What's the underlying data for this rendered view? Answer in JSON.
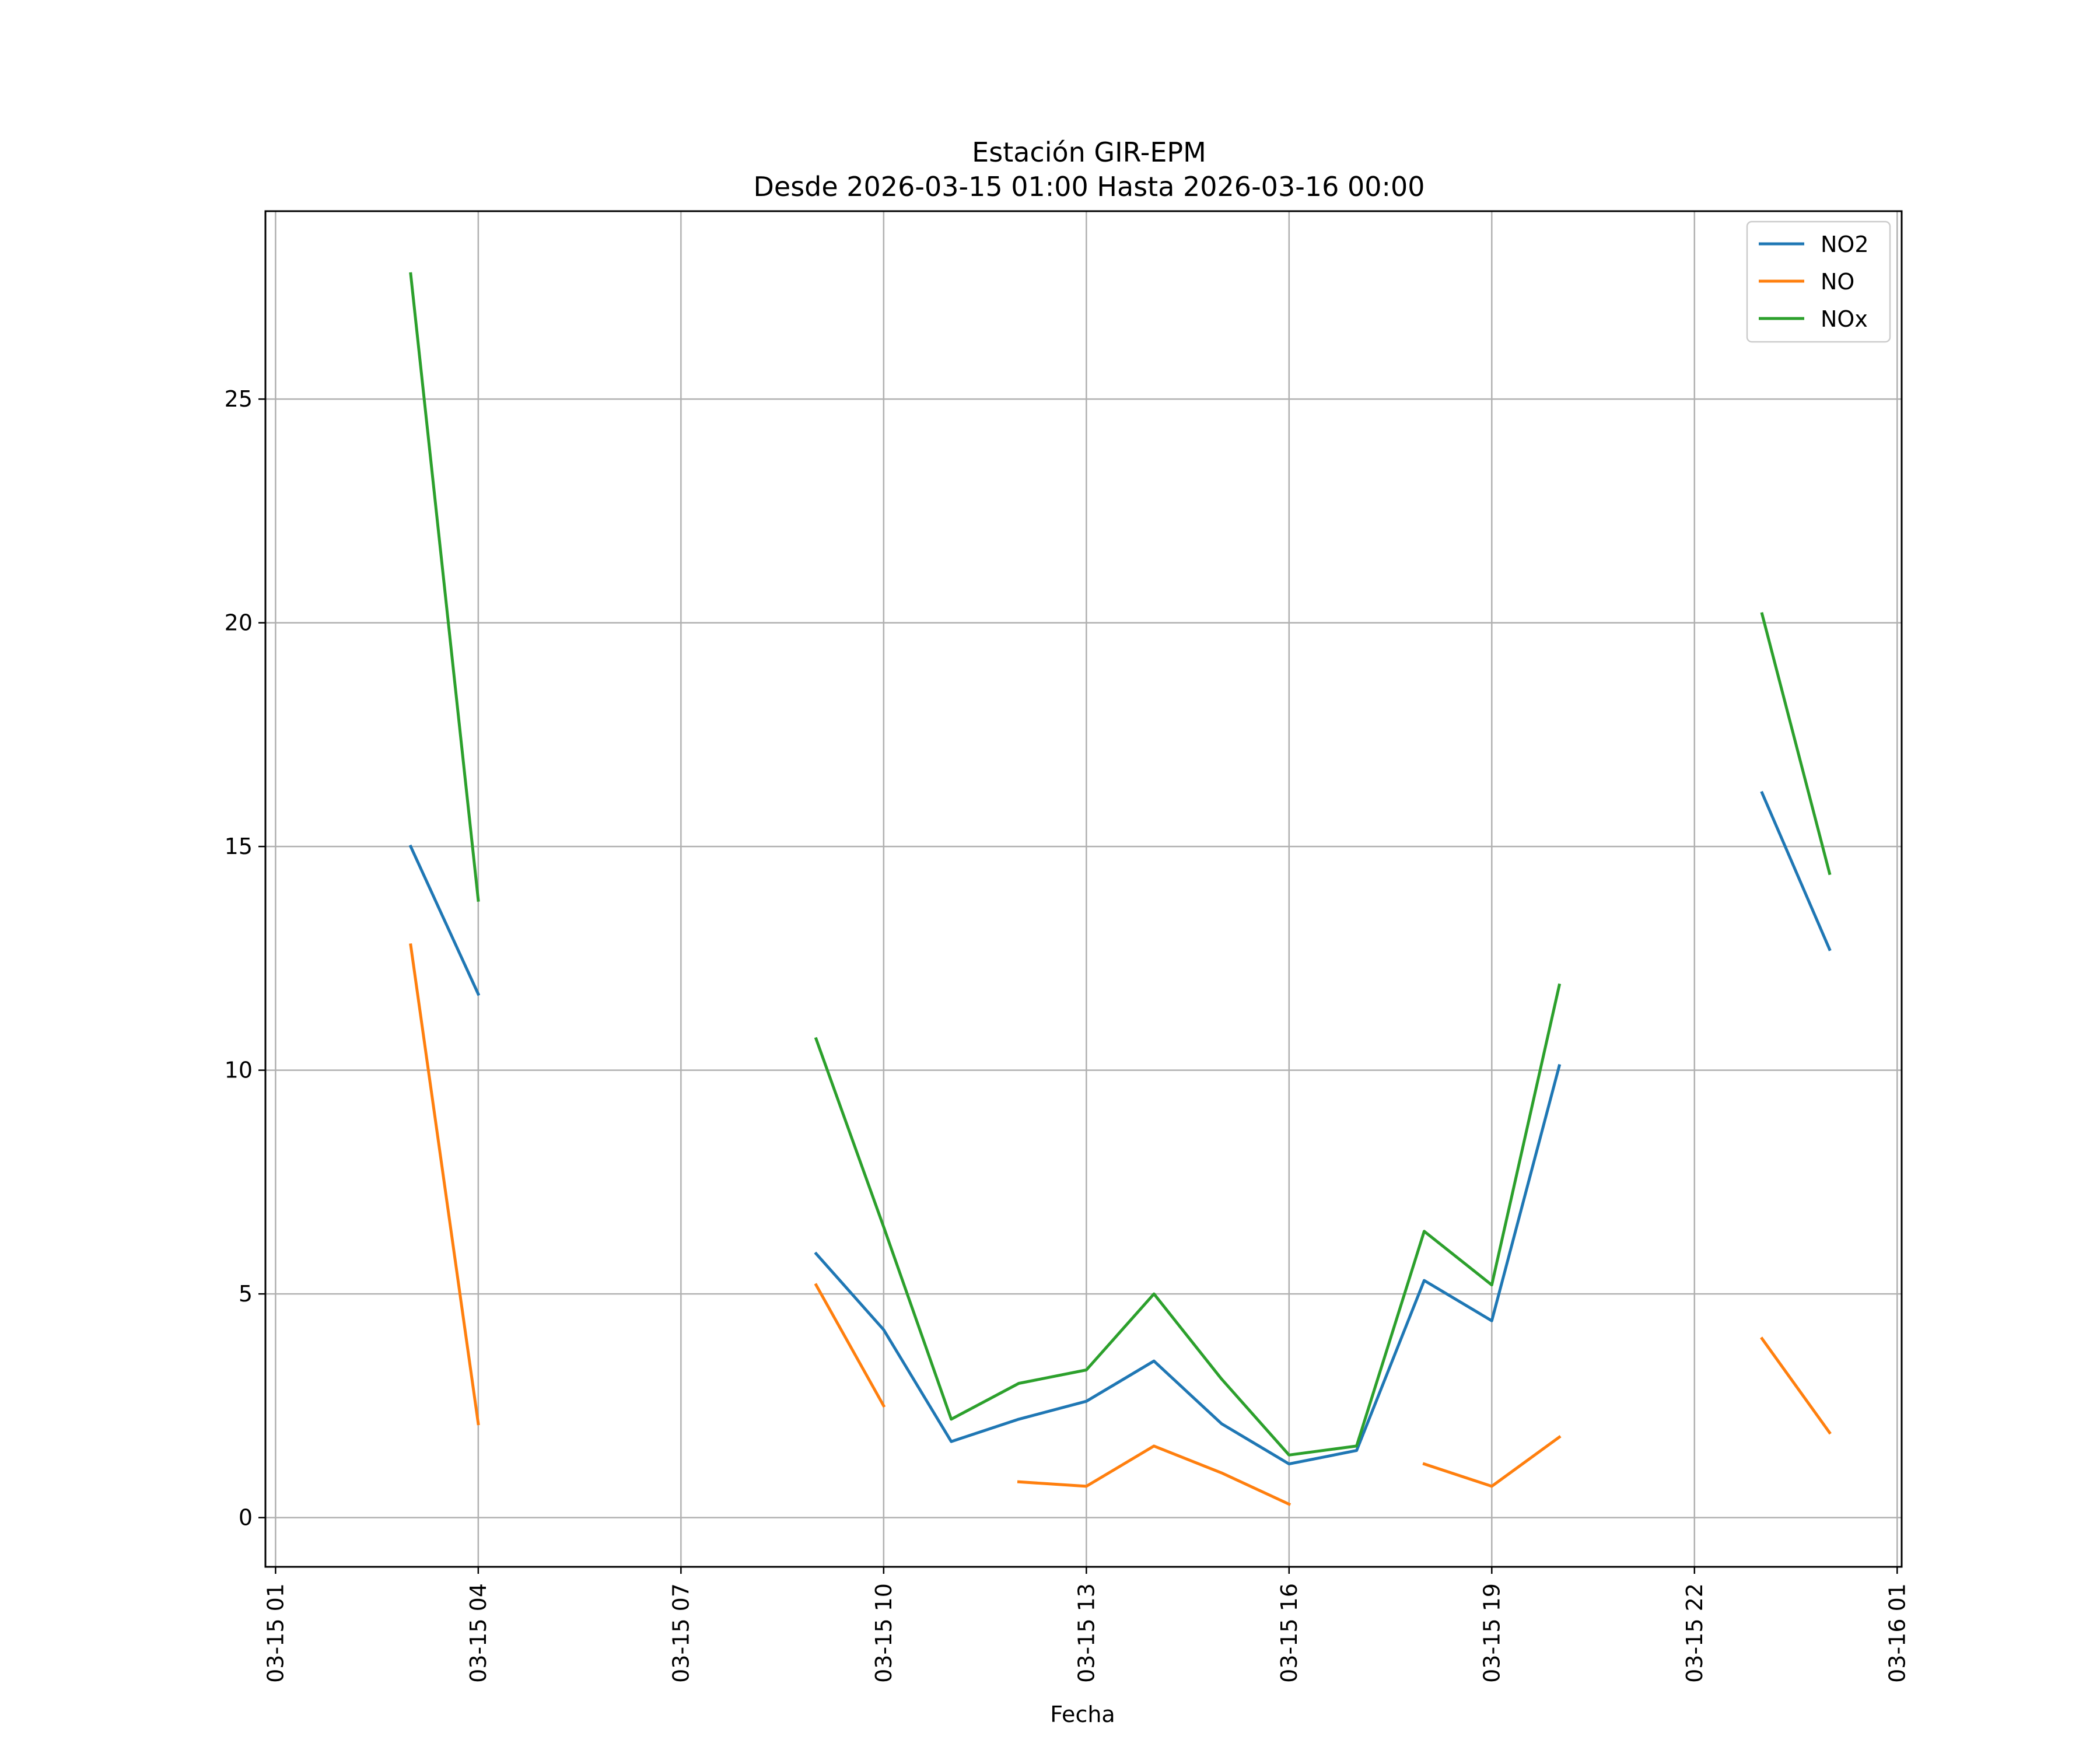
{
  "chart_data": {
    "type": "line",
    "title": "Estación GIR-EPM",
    "subtitle": "Desde 2026-03-15 01:00 Hasta 2026-03-16 00:00",
    "xlabel": "Fecha",
    "ylabel": "",
    "x": [
      "03-15 01",
      "03-15 02",
      "03-15 03",
      "03-15 04",
      "03-15 05",
      "03-15 06",
      "03-15 07",
      "03-15 08",
      "03-15 09",
      "03-15 10",
      "03-15 11",
      "03-15 12",
      "03-15 13",
      "03-15 14",
      "03-15 15",
      "03-15 16",
      "03-15 17",
      "03-15 18",
      "03-15 19",
      "03-15 20",
      "03-15 21",
      "03-15 22",
      "03-15 23",
      "03-16 00"
    ],
    "x_ticks": [
      "03-15 01",
      "03-15 04",
      "03-15 07",
      "03-15 10",
      "03-15 13",
      "03-15 16",
      "03-15 19",
      "03-15 22",
      "03-16 01"
    ],
    "x_range": [
      "03-15 00:51",
      "03-16 01:04"
    ],
    "y_ticks": [
      0,
      5,
      10,
      15,
      20,
      25
    ],
    "ylim": [
      -1.1,
      29.2
    ],
    "grid": true,
    "legend": "top-right",
    "series": [
      {
        "name": "NO2",
        "color": "#1f77b4",
        "values": [
          null,
          null,
          15.0,
          11.7,
          null,
          null,
          null,
          null,
          5.9,
          4.2,
          1.7,
          2.2,
          2.6,
          3.5,
          2.1,
          1.2,
          1.5,
          5.3,
          4.4,
          10.1,
          null,
          null,
          16.2,
          12.7
        ]
      },
      {
        "name": "NO",
        "color": "#ff7f0e",
        "values": [
          null,
          null,
          12.8,
          2.1,
          null,
          null,
          null,
          null,
          5.2,
          2.5,
          null,
          0.8,
          0.7,
          1.6,
          1.0,
          0.3,
          null,
          1.2,
          0.7,
          1.8,
          null,
          null,
          4.0,
          1.9
        ]
      },
      {
        "name": "NOx",
        "color": "#2ca02c",
        "values": [
          null,
          null,
          27.8,
          13.8,
          null,
          null,
          null,
          null,
          10.7,
          6.5,
          2.2,
          3.0,
          3.3,
          5.0,
          3.1,
          1.4,
          1.6,
          6.4,
          5.2,
          11.9,
          null,
          null,
          20.2,
          14.4
        ]
      }
    ]
  }
}
